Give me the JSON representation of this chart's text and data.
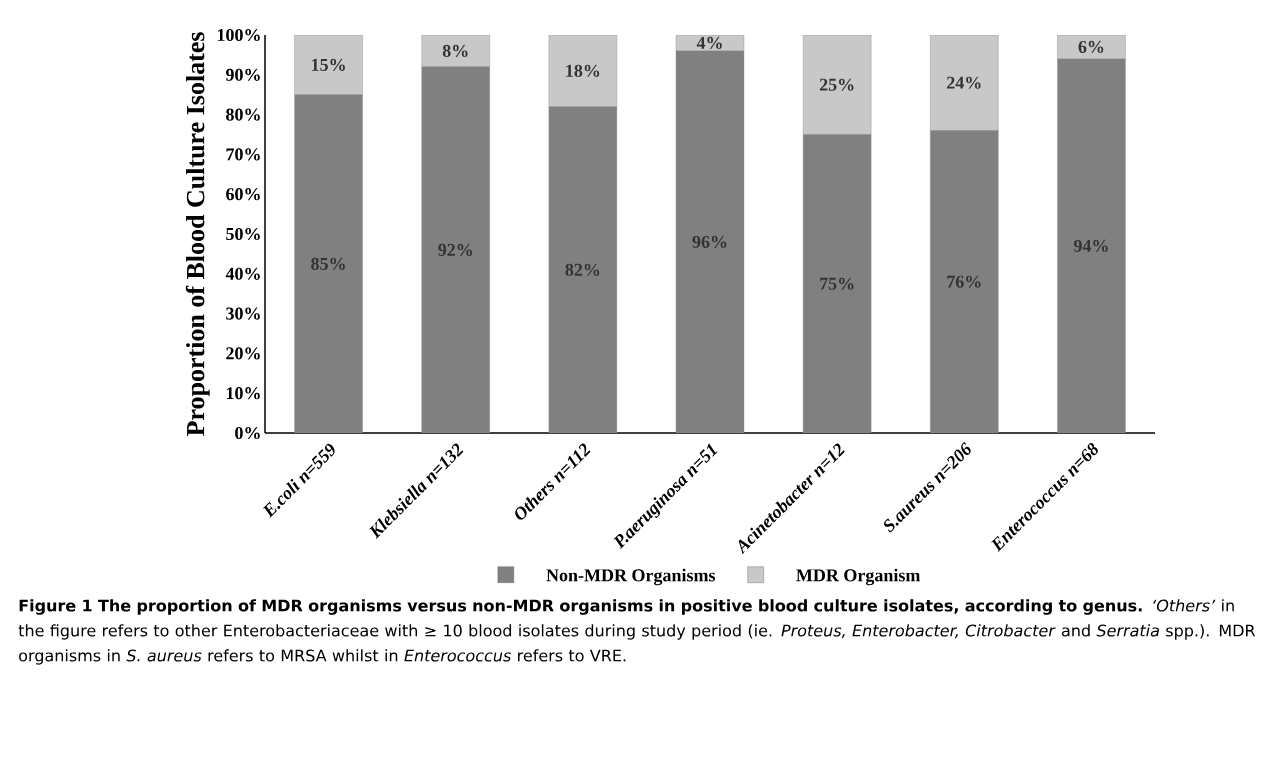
{
  "chart_data": {
    "type": "bar",
    "stacked": true,
    "title": "Figure 1 The proportion of MDR organisms versus non-MDR organisms in positive blood culture isolates, according to genus.",
    "annotations": [
      "*‘Others’* in the figure refers to other Enterobacteriaceae with ≥ 10 blood isolates during study period (ie. *Proteus, Enterobacter, Citrobacter* and *Serratia* spp.). MDR organisms in *S. aureus* refers to MRSA whilst in *Enterococcus* refers to VRE."
    ],
    "ylabel": "Proportion of Blood Culture Isolates",
    "categories": [
      "E.coli n=559",
      "Klebsiella n=132",
      "Others n=112",
      "P.aeruginosa n=51",
      "Acinetobacter n=12",
      "S.aureus n=206",
      "Enterococcus n=68"
    ],
    "series": [
      {
        "name": "Non-MDR Organisms",
        "color": "#808080",
        "values": [
          85,
          92,
          82,
          96,
          75,
          76,
          94
        ],
        "value_labels": [
          "85%",
          "92%",
          "82%",
          "96%",
          "75%",
          "76%",
          "94%"
        ]
      },
      {
        "name": "MDR Organism",
        "color": "#c8c8c8",
        "values": [
          15,
          8,
          18,
          4,
          25,
          24,
          6
        ],
        "value_labels": [
          "15%",
          "8%",
          "18%",
          "4%",
          "25%",
          "24%",
          "6%"
        ]
      }
    ],
    "ylim": [
      0,
      100
    ],
    "yticks": [
      {
        "value": 0,
        "label": "0%"
      },
      {
        "value": 10,
        "label": "10%"
      },
      {
        "value": 20,
        "label": "20%"
      },
      {
        "value": 30,
        "label": "30%"
      },
      {
        "value": 40,
        "label": "40%"
      },
      {
        "value": 50,
        "label": "50%"
      },
      {
        "value": 60,
        "label": "60%"
      },
      {
        "value": 70,
        "label": "70%"
      },
      {
        "value": 80,
        "label": "80%"
      },
      {
        "value": 90,
        "label": "90%"
      },
      {
        "value": 100,
        "label": "100%"
      }
    ],
    "legend": "bottom",
    "grid": false
  }
}
